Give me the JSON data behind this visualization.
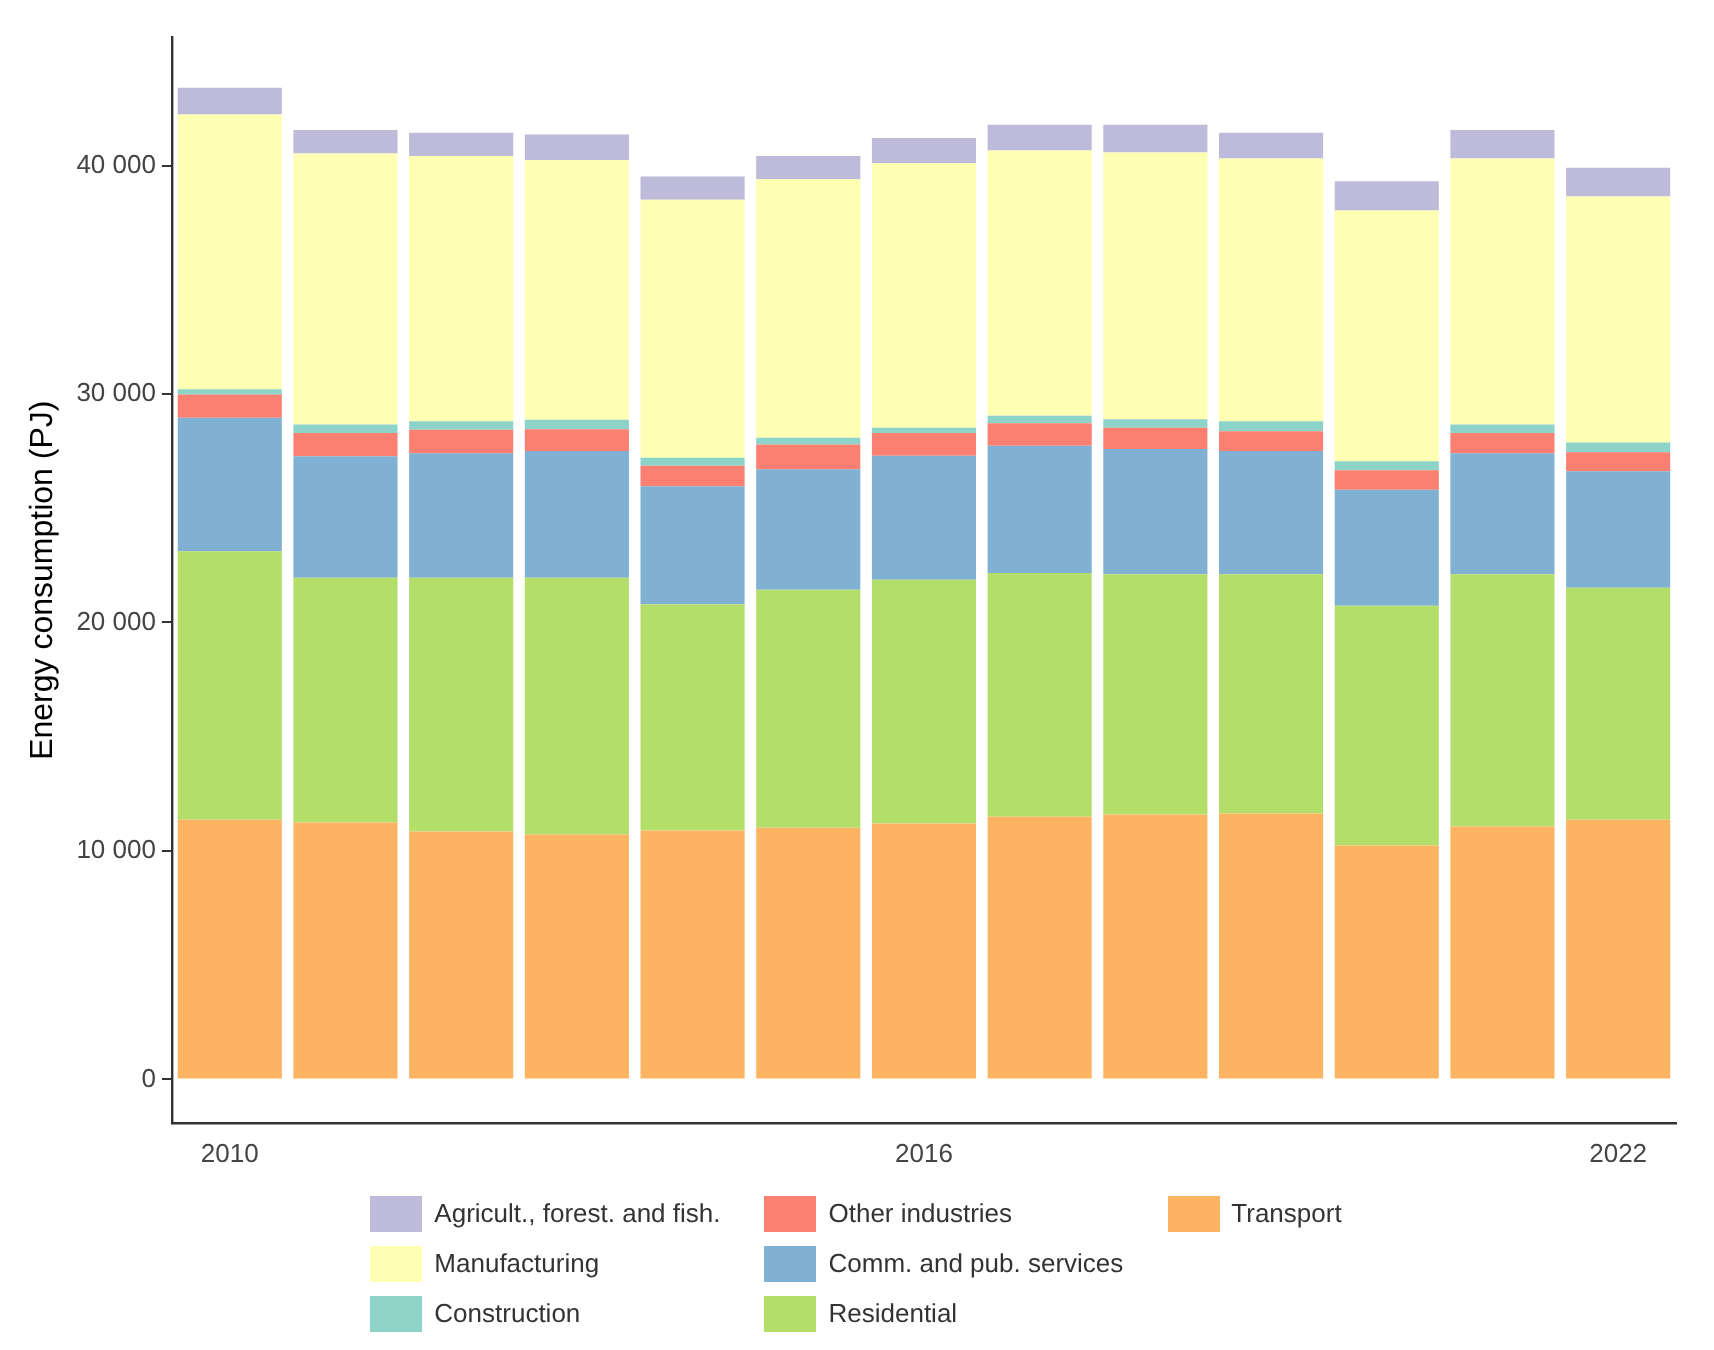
{
  "chart_data": {
    "type": "bar",
    "stacked": true,
    "ylabel": "Energy consumption (PJ)",
    "categories": [
      "2010",
      null,
      null,
      null,
      null,
      null,
      "2016",
      null,
      null,
      null,
      null,
      null,
      "2022"
    ],
    "series": [
      {
        "name": "Transport",
        "color": "#fdb462",
        "values": [
          11370,
          11240,
          10850,
          10720,
          10890,
          11020,
          11200,
          11500,
          11590,
          11640,
          10240,
          11070,
          11370
        ]
      },
      {
        "name": "Residential",
        "color": "#b3de69",
        "values": [
          11750,
          10720,
          11110,
          11240,
          9910,
          10410,
          10670,
          10660,
          10520,
          10470,
          10490,
          11040,
          10150
        ]
      },
      {
        "name": "Comm. and pub. services",
        "color": "#80b1d3",
        "values": [
          5840,
          5310,
          5450,
          5540,
          5160,
          5280,
          5430,
          5570,
          5480,
          5390,
          5080,
          5300,
          5100
        ]
      },
      {
        "name": "Other industries",
        "color": "#fb8072",
        "values": [
          1020,
          1020,
          1020,
          960,
          900,
          1080,
          990,
          990,
          930,
          870,
          850,
          880,
          830
        ]
      },
      {
        "name": "Construction",
        "color": "#8dd3c7",
        "values": [
          230,
          380,
          380,
          410,
          350,
          290,
          230,
          330,
          380,
          440,
          400,
          380,
          430
        ]
      },
      {
        "name": "Manufacturing",
        "color": "#ffffb3",
        "values": [
          12020,
          11860,
          11610,
          11370,
          11290,
          11320,
          11580,
          11610,
          11670,
          11500,
          10970,
          11640,
          10760
        ]
      },
      {
        "name": "Agricult., forest. and fish.",
        "color": "#bebada",
        "values": [
          1170,
          1030,
          1020,
          1120,
          1020,
          1020,
          1110,
          1130,
          1220,
          1130,
          1280,
          1250,
          1260
        ]
      }
    ],
    "ylim": [
      -1900,
      45600
    ],
    "yticks": [
      {
        "value": 0,
        "label": "0"
      },
      {
        "value": 10000,
        "label": "10 000"
      },
      {
        "value": 20000,
        "label": "20 000"
      },
      {
        "value": 30000,
        "label": "30 000"
      },
      {
        "value": 40000,
        "label": "40 000"
      }
    ],
    "grid": false,
    "legend": "bottom"
  }
}
